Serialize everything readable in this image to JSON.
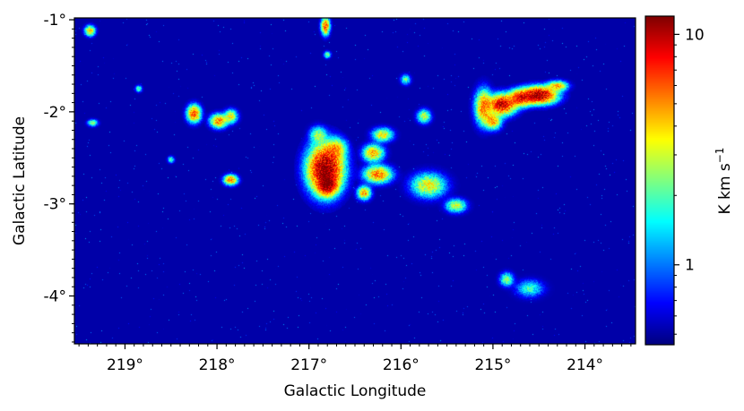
{
  "chart_data": {
    "type": "heatmap",
    "xlabel": "Galactic Longitude",
    "ylabel": "Galactic Latitude",
    "xlim": [
      219.55,
      213.45
    ],
    "ylim": [
      -4.52,
      -0.98
    ],
    "x_ticks": [
      219,
      218,
      217,
      216,
      215,
      214
    ],
    "x_tick_labels": [
      "219°",
      "218°",
      "217°",
      "216°",
      "215°",
      "214°"
    ],
    "y_ticks": [
      -1,
      -2,
      -3,
      -4
    ],
    "y_tick_labels": [
      "-1°",
      "-2°",
      "-3°",
      "-4°"
    ],
    "colorbar": {
      "label": "K km s",
      "label_superscript": "−1",
      "scale": "log",
      "range": [
        0.45,
        12
      ],
      "ticks": [
        1,
        10
      ],
      "tick_labels": [
        "1",
        "10"
      ],
      "colormap": "jet"
    },
    "background_color": "#000b8c",
    "emission_regions": [
      {
        "l": 216.82,
        "b": -2.62,
        "sl": 0.1,
        "sb": 0.14,
        "peak": 12
      },
      {
        "l": 216.8,
        "b": -2.8,
        "sl": 0.06,
        "sb": 0.06,
        "peak": 8
      },
      {
        "l": 216.7,
        "b": -2.4,
        "sl": 0.06,
        "sb": 0.06,
        "peak": 3
      },
      {
        "l": 216.3,
        "b": -2.45,
        "sl": 0.06,
        "sb": 0.05,
        "peak": 4
      },
      {
        "l": 216.25,
        "b": -2.68,
        "sl": 0.08,
        "sb": 0.05,
        "peak": 5
      },
      {
        "l": 216.4,
        "b": -2.88,
        "sl": 0.04,
        "sb": 0.04,
        "peak": 4
      },
      {
        "l": 216.2,
        "b": -2.25,
        "sl": 0.06,
        "sb": 0.04,
        "peak": 3
      },
      {
        "l": 216.9,
        "b": -2.25,
        "sl": 0.05,
        "sb": 0.05,
        "peak": 2
      },
      {
        "l": 215.7,
        "b": -2.8,
        "sl": 0.1,
        "sb": 0.07,
        "peak": 3
      },
      {
        "l": 215.4,
        "b": -3.02,
        "sl": 0.06,
        "sb": 0.04,
        "peak": 2.5
      },
      {
        "l": 215.75,
        "b": -2.05,
        "sl": 0.04,
        "sb": 0.04,
        "peak": 2.5
      },
      {
        "l": 214.9,
        "b": -1.92,
        "sl": 0.08,
        "sb": 0.06,
        "peak": 9
      },
      {
        "l": 214.5,
        "b": -1.82,
        "sl": 0.1,
        "sb": 0.05,
        "peak": 11
      },
      {
        "l": 214.7,
        "b": -1.85,
        "sl": 0.07,
        "sb": 0.05,
        "peak": 7
      },
      {
        "l": 214.3,
        "b": -1.72,
        "sl": 0.06,
        "sb": 0.03,
        "peak": 4
      },
      {
        "l": 215.1,
        "b": -1.95,
        "sl": 0.05,
        "sb": 0.1,
        "peak": 5
      },
      {
        "l": 215.0,
        "b": -2.1,
        "sl": 0.05,
        "sb": 0.05,
        "peak": 4
      },
      {
        "l": 218.25,
        "b": -2.02,
        "sl": 0.04,
        "sb": 0.05,
        "peak": 6
      },
      {
        "l": 217.98,
        "b": -2.1,
        "sl": 0.05,
        "sb": 0.04,
        "peak": 5
      },
      {
        "l": 217.85,
        "b": -2.05,
        "sl": 0.04,
        "sb": 0.04,
        "peak": 3
      },
      {
        "l": 217.85,
        "b": -2.74,
        "sl": 0.04,
        "sb": 0.03,
        "peak": 5
      },
      {
        "l": 216.82,
        "b": -1.07,
        "sl": 0.025,
        "sb": 0.05,
        "peak": 6
      },
      {
        "l": 216.8,
        "b": -1.38,
        "sl": 0.02,
        "sb": 0.02,
        "peak": 2
      },
      {
        "l": 219.38,
        "b": -1.12,
        "sl": 0.03,
        "sb": 0.03,
        "peak": 4
      },
      {
        "l": 219.35,
        "b": -2.12,
        "sl": 0.03,
        "sb": 0.02,
        "peak": 2
      },
      {
        "l": 214.85,
        "b": -3.82,
        "sl": 0.04,
        "sb": 0.04,
        "peak": 2
      },
      {
        "l": 214.6,
        "b": -3.92,
        "sl": 0.08,
        "sb": 0.05,
        "peak": 1.3
      },
      {
        "l": 215.95,
        "b": -1.65,
        "sl": 0.03,
        "sb": 0.03,
        "peak": 1.5
      },
      {
        "l": 218.85,
        "b": -1.75,
        "sl": 0.02,
        "sb": 0.02,
        "peak": 1.5
      },
      {
        "l": 218.5,
        "b": -2.52,
        "sl": 0.02,
        "sb": 0.02,
        "peak": 1.5
      }
    ]
  }
}
